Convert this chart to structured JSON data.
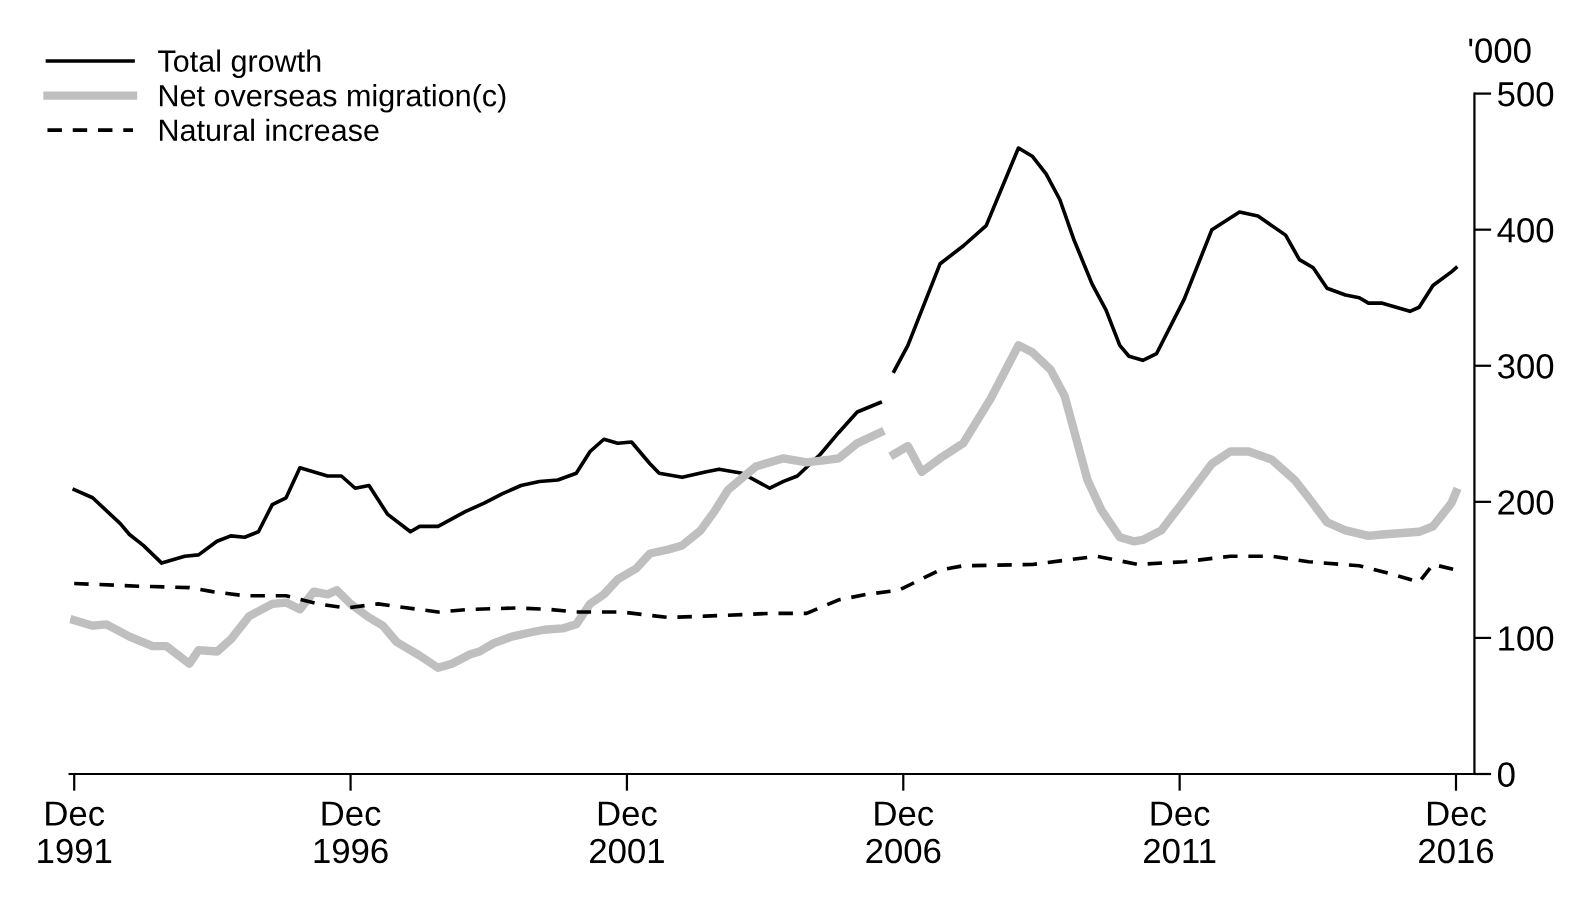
{
  "chart_data": {
    "type": "line",
    "ylabel": "'000",
    "xlim": [
      "1991-11",
      "2017-04"
    ],
    "ylim": [
      0,
      500
    ],
    "yticks": [
      0,
      100,
      200,
      300,
      400,
      500
    ],
    "xticks": [
      {
        "value": "1991-12",
        "label": "Dec\n1991"
      },
      {
        "value": "1996-12",
        "label": "Dec\n1996"
      },
      {
        "value": "2001-12",
        "label": "Dec\n2001"
      },
      {
        "value": "2006-12",
        "label": "Dec\n2006"
      },
      {
        "value": "2011-12",
        "label": "Dec\n2011"
      },
      {
        "value": "2016-12",
        "label": "Dec\n2016"
      }
    ],
    "grid": false,
    "legend": "top left",
    "marker": "none",
    "series": [
      {
        "name": "Total growth",
        "color": "#000000",
        "line_style": "solid",
        "x": [
          "1991-12",
          "1992-04",
          "1992-10",
          "1992-12",
          "1993-03",
          "1993-07",
          "1993-12",
          "1994-03",
          "1994-07",
          "1994-10",
          "1995-01",
          "1995-04",
          "1995-07",
          "1995-10",
          "1996-01",
          "1996-03",
          "1996-07",
          "1996-10",
          "1997-01",
          "1997-04",
          "1997-08",
          "1998-01",
          "1998-03",
          "1998-07",
          "1999-01",
          "1999-05",
          "1999-09",
          "2000-01",
          "2000-05",
          "2000-09",
          "2001-01",
          "2001-04",
          "2001-07",
          "2001-10",
          "2002-01",
          "2002-05",
          "2002-07",
          "2002-12",
          "2003-05",
          "2003-08",
          "2004-01",
          "2004-07",
          "2004-10",
          "2005-01",
          "2005-06",
          "2005-10",
          "2006-02",
          "2006-07",
          "2006-08",
          "2006-10",
          "2007-01",
          "2007-08",
          "2008-01",
          "2008-06",
          "2009-01",
          "2009-04",
          "2009-07",
          "2009-10",
          "2010-01",
          "2010-05",
          "2010-08",
          "2010-11",
          "2011-01",
          "2011-04",
          "2011-07",
          "2012-01",
          "2012-07",
          "2013-01",
          "2013-05",
          "2013-11",
          "2014-02",
          "2014-05",
          "2014-08",
          "2014-12",
          "2015-03",
          "2015-05",
          "2015-08",
          "2016-02",
          "2016-04",
          "2016-07",
          "2016-11",
          "2016-12"
        ],
        "values": [
          209,
          203,
          184,
          176,
          168,
          155,
          160,
          161,
          171,
          175,
          174,
          178,
          198,
          203,
          225,
          223,
          219,
          219,
          210,
          212,
          191,
          178,
          182,
          182,
          193,
          199,
          206,
          212,
          215,
          216,
          221,
          237,
          246,
          243,
          244,
          228,
          221,
          218,
          222,
          224,
          221,
          210,
          215,
          219,
          235,
          251,
          266,
          273,
          null,
          296,
          315,
          375,
          388,
          403,
          460,
          454,
          441,
          422,
          393,
          360,
          341,
          315,
          307,
          304,
          309,
          349,
          400,
          413,
          410,
          396,
          378,
          372,
          357,
          352,
          350,
          346,
          346,
          340,
          343,
          359,
          369,
          372
        ]
      },
      {
        "name": "Net overseas migration(c)",
        "color": "#bfbfbf",
        "line_style": "solid",
        "x": [
          "1991-12",
          "1992-04",
          "1992-07",
          "1992-12",
          "1993-05",
          "1993-08",
          "1994-01",
          "1994-03",
          "1994-07",
          "1994-10",
          "1995-02",
          "1995-07",
          "1995-10",
          "1996-01",
          "1996-04",
          "1996-07",
          "1996-09",
          "1996-12",
          "1997-04",
          "1997-07",
          "1997-10",
          "1998-03",
          "1998-07",
          "1998-10",
          "1999-02",
          "1999-04",
          "1999-07",
          "1999-11",
          "2000-03",
          "2000-06",
          "2000-10",
          "2001-01",
          "2001-04",
          "2001-07",
          "2001-10",
          "2002-02",
          "2002-05",
          "2002-09",
          "2002-12",
          "2003-04",
          "2003-07",
          "2003-10",
          "2004-04",
          "2004-10",
          "2005-03",
          "2005-08",
          "2005-10",
          "2006-02",
          "2006-07",
          "2006-08",
          "2006-10",
          "2007-01",
          "2007-04",
          "2007-08",
          "2008-01",
          "2008-07",
          "2009-01",
          "2009-04",
          "2009-08",
          "2009-11",
          "2010-04",
          "2010-07",
          "2010-11",
          "2011-02",
          "2011-04",
          "2011-08",
          "2012-01",
          "2012-07",
          "2012-11",
          "2013-03",
          "2013-08",
          "2014-01",
          "2014-04",
          "2014-08",
          "2014-12",
          "2015-05",
          "2015-08",
          "2016-04",
          "2016-07",
          "2016-11",
          "2016-12"
        ],
        "values": [
          113,
          109,
          110,
          101,
          94,
          94,
          81,
          91,
          90,
          99,
          116,
          125,
          126,
          121,
          134,
          132,
          135,
          125,
          115,
          109,
          97,
          87,
          78,
          81,
          88,
          90,
          96,
          101,
          104,
          106,
          107,
          110,
          125,
          132,
          143,
          151,
          162,
          165,
          168,
          179,
          193,
          209,
          226,
          232,
          229,
          231,
          232,
          243,
          251,
          null,
          235,
          241,
          222,
          232,
          243,
          276,
          315,
          310,
          297,
          278,
          216,
          194,
          174,
          171,
          172,
          179,
          201,
          228,
          237,
          237,
          231,
          216,
          203,
          185,
          179,
          175,
          176,
          178,
          182,
          199,
          207
        ]
      },
      {
        "name": "Natural increase",
        "color": "#000000",
        "line_style": "dashed",
        "x": [
          "1991-12",
          "1993-02",
          "1994-01",
          "1994-06",
          "1995-01",
          "1995-10",
          "1996-05",
          "1996-11",
          "1997-06",
          "1998-07",
          "1999-02",
          "1999-12",
          "2000-07",
          "2001-01",
          "2001-11",
          "2002-09",
          "2003-05",
          "2004-07",
          "2005-03",
          "2005-10",
          "2006-04",
          "2006-11",
          "2007-08",
          "2008-01",
          "2009-04",
          "2010-06",
          "2011-03",
          "2012-01",
          "2012-11",
          "2013-08",
          "2014-04",
          "2015-03",
          "2015-10",
          "2016-04",
          "2016-07",
          "2016-12"
        ],
        "values": [
          140,
          138,
          137,
          134,
          131,
          131,
          125,
          122,
          125,
          119,
          121,
          122,
          121,
          119,
          119,
          115,
          116,
          118,
          118,
          128,
          132,
          135,
          150,
          153,
          154,
          160,
          154,
          156,
          160,
          160,
          156,
          153,
          147,
          141,
          154,
          150
        ]
      }
    ]
  }
}
